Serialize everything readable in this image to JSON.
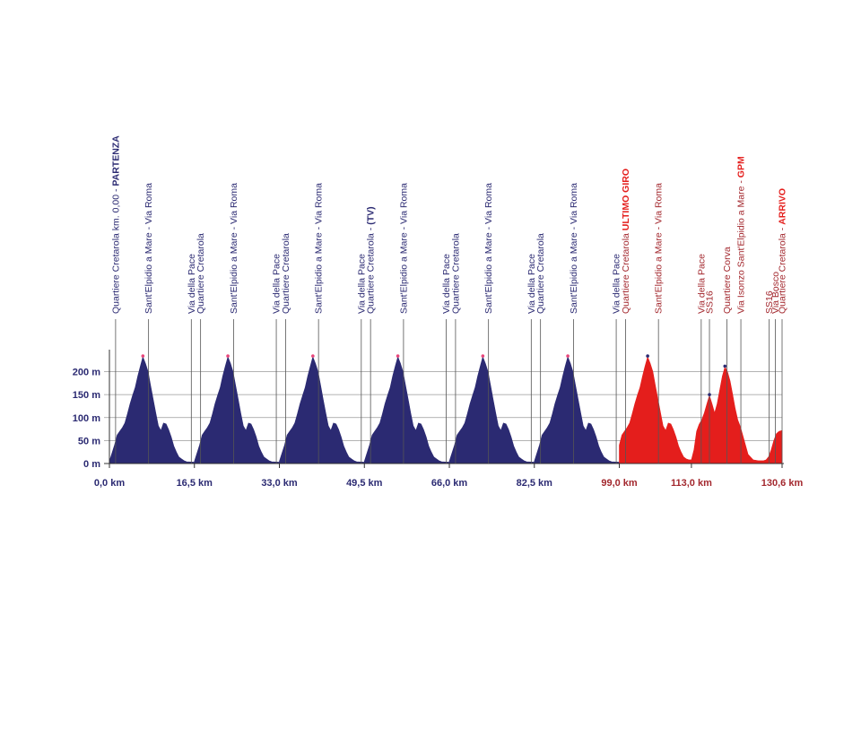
{
  "chart_data": {
    "type": "area",
    "x_unit": "km",
    "y_unit": "m",
    "xlim": [
      0,
      130.6
    ],
    "ylim": [
      0,
      240
    ],
    "y_ticks": [
      {
        "value": 0,
        "label": "0 m"
      },
      {
        "value": 50,
        "label": "50 m"
      },
      {
        "value": 100,
        "label": "100 m"
      },
      {
        "value": 150,
        "label": "150 m"
      },
      {
        "value": 200,
        "label": "200 m"
      }
    ],
    "x_ticks": [
      {
        "value": 0,
        "label": "0,0 km",
        "color": "#2b2a72"
      },
      {
        "value": 16.5,
        "label": "16,5 km",
        "color": "#2b2a72"
      },
      {
        "value": 33.0,
        "label": "33,0 km",
        "color": "#2b2a72"
      },
      {
        "value": 49.5,
        "label": "49,5 km",
        "color": "#2b2a72"
      },
      {
        "value": 66.0,
        "label": "66,0 km",
        "color": "#2b2a72"
      },
      {
        "value": 82.5,
        "label": "82,5 km",
        "color": "#2b2a72"
      },
      {
        "value": 99.0,
        "label": "99,0 km",
        "color": "#a3282e"
      },
      {
        "value": 113.0,
        "label": "113,0 km",
        "color": "#a3282e"
      },
      {
        "value": 130.6,
        "label": "130,6 km",
        "color": "#a3282e"
      }
    ],
    "lap_profile": {
      "x_offset": [
        0,
        1,
        1.5,
        2,
        2.5,
        3,
        3.5,
        4,
        4.5,
        5,
        5.5,
        6,
        6.5,
        7,
        7.5,
        8,
        8.5,
        9,
        9.5,
        10,
        10.5,
        11,
        11.5,
        12,
        12.5,
        13,
        13.5,
        14,
        14.5,
        15,
        16.5
      ],
      "y": [
        5,
        40,
        62,
        70,
        78,
        88,
        108,
        130,
        148,
        165,
        190,
        212,
        232,
        218,
        200,
        170,
        140,
        110,
        82,
        72,
        88,
        86,
        74,
        58,
        38,
        25,
        14,
        10,
        6,
        4,
        3
      ]
    },
    "series": [
      {
        "name": "",
        "color": "#2b2a72",
        "lap_starts": [
          0,
          16.5,
          33.0,
          49.5,
          66.0,
          82.5
        ]
      },
      {
        "name": "ULTIMO GIRO",
        "color": "#e41e1c",
        "x": [
          99.0,
          99.5,
          100,
          100.5,
          101,
          101.5,
          102,
          102.5,
          103,
          103.5,
          104,
          104.5,
          105,
          105.5,
          106,
          106.5,
          107,
          107.5,
          108,
          108.5,
          109,
          109.5,
          110,
          110.5,
          111,
          111.5,
          112,
          112.5,
          113.0,
          113.5,
          114,
          114.5,
          115,
          115.5,
          116,
          116.5,
          117,
          117.5,
          118,
          118.5,
          119,
          119.5,
          120,
          120.5,
          121,
          121.5,
          122,
          122.5,
          123,
          124,
          125,
          126,
          127,
          127.5,
          128,
          128.5,
          129,
          129.5,
          130,
          130.6
        ],
        "y": [
          40,
          62,
          70,
          78,
          88,
          108,
          130,
          148,
          165,
          190,
          212,
          232,
          218,
          200,
          170,
          140,
          110,
          82,
          72,
          88,
          86,
          74,
          58,
          38,
          25,
          14,
          10,
          8,
          8,
          30,
          70,
          85,
          95,
          110,
          130,
          148,
          130,
          110,
          130,
          160,
          190,
          210,
          200,
          180,
          150,
          120,
          95,
          80,
          60,
          20,
          8,
          6,
          6,
          8,
          15,
          30,
          50,
          65,
          70,
          72
        ]
      }
    ],
    "markers": [
      {
        "km": 1.2,
        "label": "Quartiere Cretarola km. 0,00 - ",
        "bold": "PARTENZA",
        "bold_color": "#2b2a72",
        "color": "#2b2a72"
      },
      {
        "km": 7.6,
        "label": "Sant'Elpidio a Mare - Via Roma",
        "bold": "",
        "color": "#2b2a72"
      },
      {
        "km": 15.9,
        "label": "Via della Pace",
        "bold": "",
        "color": "#2b2a72"
      },
      {
        "km": 17.7,
        "label": "Quartiere Cretarola",
        "bold": "",
        "color": "#2b2a72"
      },
      {
        "km": 24.1,
        "label": "Sant'Elpidio a Mare - Via Roma",
        "bold": "",
        "color": "#2b2a72"
      },
      {
        "km": 32.4,
        "label": "Via della Pace",
        "bold": "",
        "color": "#2b2a72"
      },
      {
        "km": 34.2,
        "label": "Quartiere Cretarola",
        "bold": "",
        "color": "#2b2a72"
      },
      {
        "km": 40.6,
        "label": "Sant'Elpidio a Mare - Via Roma",
        "bold": "",
        "color": "#2b2a72"
      },
      {
        "km": 48.9,
        "label": "Via della Pace",
        "bold": "",
        "color": "#2b2a72"
      },
      {
        "km": 50.7,
        "label": "Quartiere Cretarola - ",
        "bold": "(TV)",
        "bold_color": "#2b2a72",
        "color": "#2b2a72"
      },
      {
        "km": 57.1,
        "label": "Sant'Elpidio a Mare - Via Roma",
        "bold": "",
        "color": "#2b2a72"
      },
      {
        "km": 65.4,
        "label": "Via della Pace",
        "bold": "",
        "color": "#2b2a72"
      },
      {
        "km": 67.2,
        "label": "Quartiere Cretarola",
        "bold": "",
        "color": "#2b2a72"
      },
      {
        "km": 73.6,
        "label": "Sant'Elpidio a Mare - Via Roma",
        "bold": "",
        "color": "#2b2a72"
      },
      {
        "km": 81.9,
        "label": "Via della Pace",
        "bold": "",
        "color": "#2b2a72"
      },
      {
        "km": 83.7,
        "label": "Quartiere Cretarola",
        "bold": "",
        "color": "#2b2a72"
      },
      {
        "km": 90.1,
        "label": "Sant'Elpidio a Mare - Via Roma",
        "bold": "",
        "color": "#2b2a72"
      },
      {
        "km": 98.4,
        "label": "Via della Pace",
        "bold": "",
        "color": "#2b2a72"
      },
      {
        "km": 100.2,
        "label": "Quartiere Cretarola ",
        "bold": "ULTIMO GIRO",
        "bold_color": "#e41e1c",
        "color": "#a3282e"
      },
      {
        "km": 106.6,
        "label": "Sant'Elpidio a Mare - Via Roma",
        "bold": "",
        "color": "#a3282e"
      },
      {
        "km": 114.9,
        "label": "Via della Pace",
        "bold": "",
        "color": "#a3282e"
      },
      {
        "km": 116.5,
        "label": "SS16",
        "bold": "",
        "color": "#a3282e"
      },
      {
        "km": 119.9,
        "label": "Quartiere Corva",
        "bold": "",
        "color": "#a3282e"
      },
      {
        "km": 122.6,
        "label": "Via Isonzo Sant'Elpidio a Mare - ",
        "bold": "GPM",
        "bold_color": "#e41e1c",
        "color": "#a3282e"
      },
      {
        "km": 128.1,
        "label": "SS16",
        "bold": "",
        "color": "#a3282e"
      },
      {
        "km": 129.3,
        "label": "Via Bosco",
        "bold": "",
        "color": "#a3282e"
      },
      {
        "km": 130.6,
        "label": "Quartiere Cretarola - ",
        "bold": "ARRIVO",
        "bold_color": "#e41e1c",
        "color": "#a3282e"
      }
    ],
    "grid": true,
    "colors": {
      "lap": "#2b2a72",
      "final_lap": "#e41e1c",
      "final_text": "#a3282e",
      "grid": "#9a9a9a",
      "marker_line": "#555555",
      "peak_dot": "#e8457a"
    }
  }
}
